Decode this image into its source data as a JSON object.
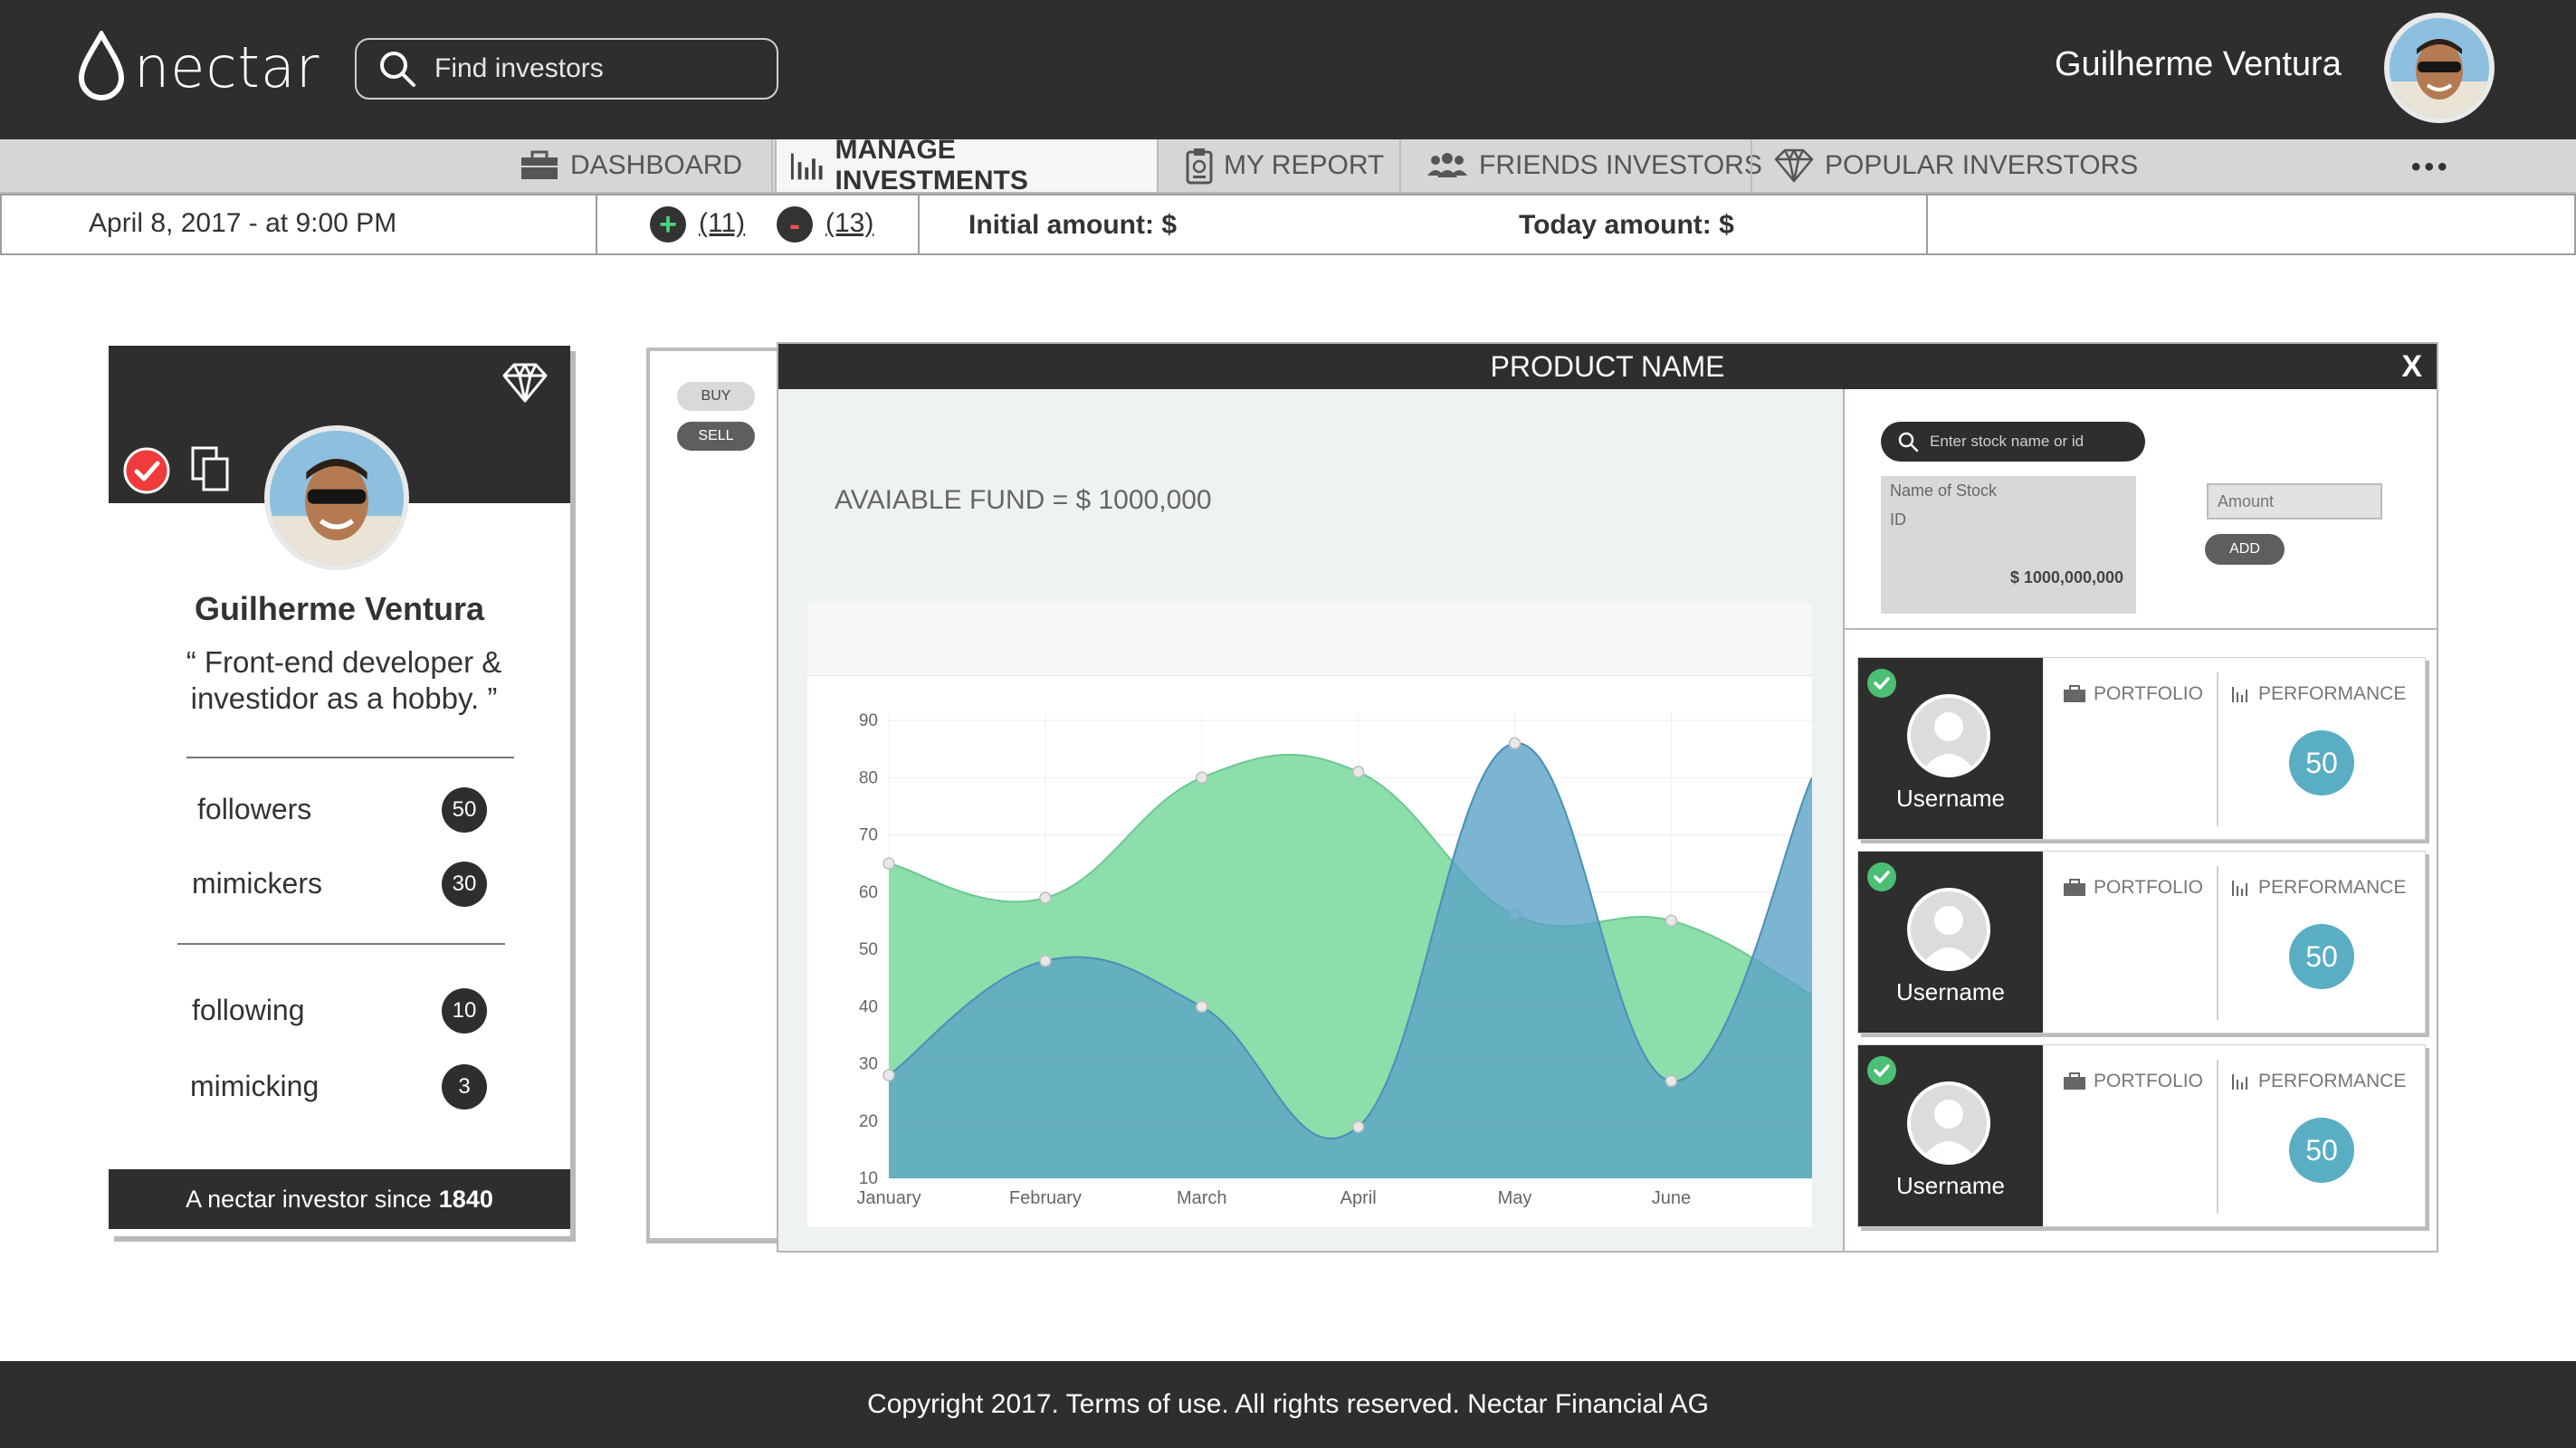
{
  "brand": {
    "logo_text": "nectar"
  },
  "search": {
    "placeholder": "Find investors"
  },
  "user": {
    "name": "Guilherme Ventura"
  },
  "nav": {
    "items": [
      {
        "label": "DASHBOARD",
        "icon": "briefcase-icon"
      },
      {
        "label": "MANAGE INVESTMENTS",
        "icon": "bar-chart-icon",
        "active": true
      },
      {
        "label": "MY REPORT",
        "icon": "report-icon"
      },
      {
        "label": "FRIENDS INVESTORS",
        "icon": "users-icon"
      },
      {
        "label": "POPULAR INVERSTORS",
        "icon": "diamond-icon"
      }
    ],
    "more": "•••"
  },
  "info": {
    "date": "April 8, 2017 - at 9:00 PM",
    "plus_count": "(11)",
    "minus_count": "(13)",
    "initial_amount": "Initial amount: $",
    "today_amount": "Today amount: $"
  },
  "profile": {
    "name": "Guilherme Ventura",
    "bio": "“ Front-end developer & investidor as a hobby. ”",
    "stats": [
      {
        "label": "followers",
        "count": "50"
      },
      {
        "label": "mimickers",
        "count": "30"
      },
      {
        "label": "following",
        "count": "10"
      },
      {
        "label": "mimicking",
        "count": "3"
      }
    ],
    "since_label": "A nectar investor since",
    "since_year": "1840"
  },
  "trade": {
    "buy": "BUY",
    "sell": "SELL"
  },
  "product": {
    "title": "PRODUCT NAME",
    "close": "X",
    "fund": "AVAIABLE FUND = $ 1000,000"
  },
  "stock": {
    "search_placeholder": "Enter stock name or id",
    "name_label": "Name of Stock",
    "id_label": "ID",
    "price": "$ 1000,000,000",
    "amount_placeholder": "Amount",
    "add": "ADD"
  },
  "users": [
    {
      "name": "Username",
      "portfolio": "PORTFOLIO",
      "performance": "PERFORMANCE",
      "score": "50"
    },
    {
      "name": "Username",
      "portfolio": "PORTFOLIO",
      "performance": "PERFORMANCE",
      "score": "50"
    },
    {
      "name": "Username",
      "portfolio": "PORTFOLIO",
      "performance": "PERFORMANCE",
      "score": "50"
    }
  ],
  "footer": {
    "text": "Copyright 2017. Terms of use. All rights reserved. Nectar Financial AG"
  },
  "colors": {
    "green_series": "#86dca5",
    "blue_series": "#5aa3c6",
    "dark": "#2e2e2e",
    "accent_blue": "#5aaec3"
  },
  "chart_data": {
    "type": "area",
    "categories": [
      "January",
      "February",
      "March",
      "April",
      "May",
      "June"
    ],
    "ylim": [
      10,
      90
    ],
    "yticks": [
      10,
      20,
      30,
      40,
      50,
      60,
      70,
      80,
      90
    ],
    "series": [
      {
        "color": "#86dca5",
        "values": [
          65,
          59,
          80,
          81,
          56,
          55
        ]
      },
      {
        "color": "#5aa3c6",
        "values": [
          28,
          48,
          40,
          19,
          86,
          27
        ]
      }
    ],
    "grid": true
  }
}
